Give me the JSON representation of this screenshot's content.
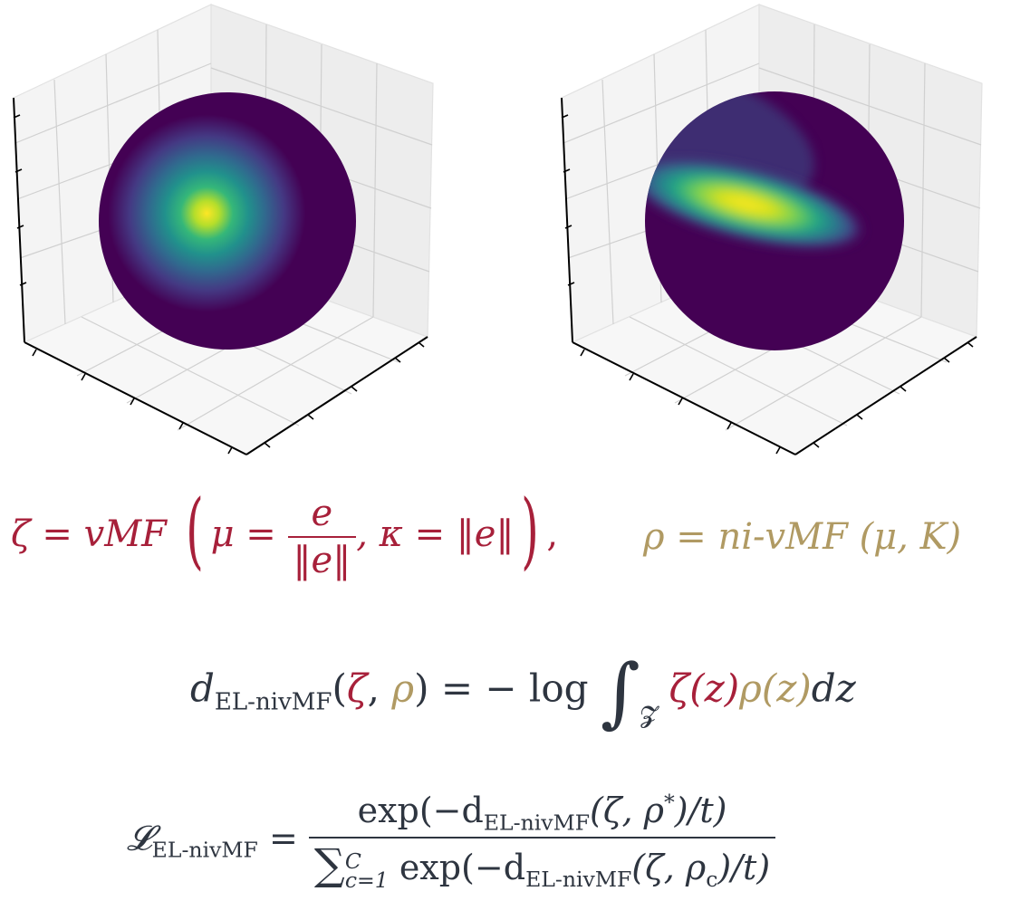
{
  "colors": {
    "zeta": "#a7203a",
    "rho": "#b09a63",
    "text": "#2e3540",
    "viridis_low": "#440154",
    "viridis_mid": "#21918c",
    "viridis_high": "#fde725"
  },
  "panels": [
    {
      "name": "vmf-sphere",
      "surface": "sphere",
      "colormap": "viridis",
      "density_shape": "isotropic-blob"
    },
    {
      "name": "ni-vmf-sphere",
      "surface": "sphere",
      "colormap": "viridis",
      "density_shape": "elongated-ridge"
    }
  ],
  "eq_vmf": {
    "lhs": "ζ = vMF",
    "mu": "μ =",
    "frac_num": "e",
    "frac_den": "‖e‖",
    "kappa": ", κ = ‖e‖",
    "trail": ","
  },
  "eq_nivmf": {
    "text": "ρ = ni-vMF",
    "args": "(μ, K)"
  },
  "eq_distance": {
    "d": "d",
    "sub": "EL-nivMF",
    "open": "(",
    "zeta": "ζ",
    "comma": ",",
    "rho": "ρ",
    "close_eq": ") = − log",
    "integral": "∫",
    "domain": "𝓩",
    "zeta_z": "ζ(z)",
    "rho_z": "ρ(z)",
    "dz": "dz"
  },
  "eq_loss": {
    "L": "𝓛",
    "L_sub": "EL-nivMF",
    "eq": "=",
    "num": "exp(−d",
    "num_sub": "EL-nivMF",
    "num_rest": "(ζ, ρ",
    "num_star": "*",
    "num_end": ")/t)",
    "sum": "∑",
    "sum_top": "C",
    "sum_bot": "c=1",
    "den": " exp(−d",
    "den_sub": "EL-nivMF",
    "den_rest": "(ζ, ρ",
    "den_c": "c",
    "den_end": ")/t)"
  }
}
